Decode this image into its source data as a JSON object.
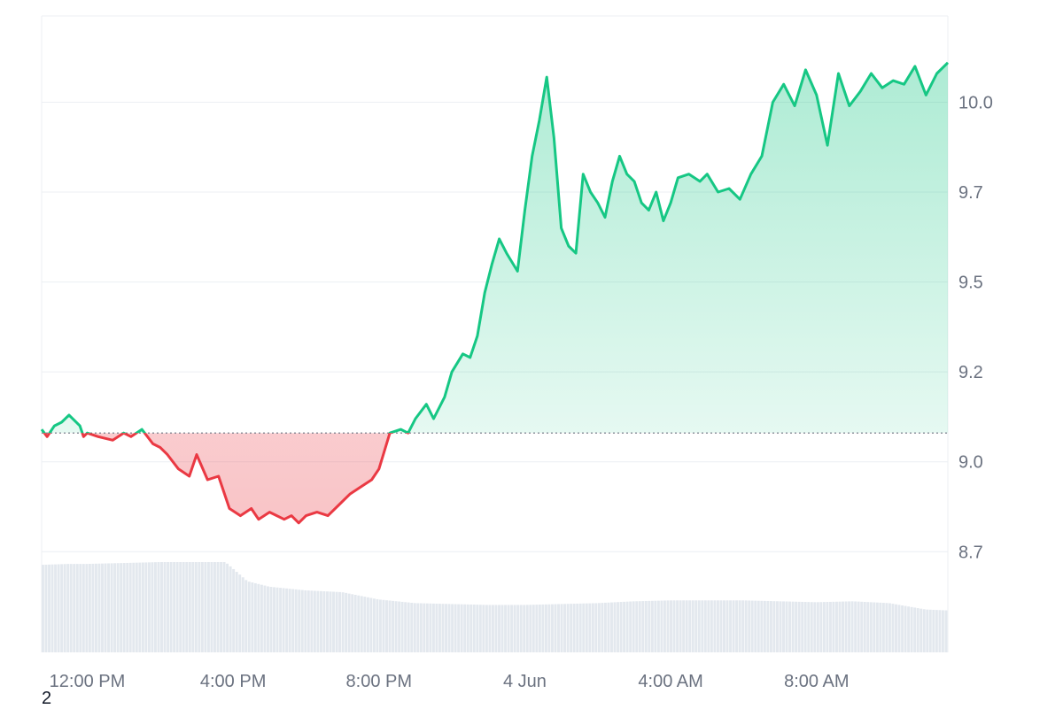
{
  "footnote": "2",
  "colors": {
    "up": "#16c784",
    "down": "#ea3943",
    "grid": "#eceff3",
    "volume": "#e3e8ee",
    "baseline": "#6b7280",
    "tick": "#6b7280"
  },
  "chart_data": {
    "type": "area",
    "title": "",
    "xlabel": "",
    "ylabel": "",
    "baseline_value": 9.08,
    "ylim": [
      8.47,
      10.24
    ],
    "y_ticks": [
      {
        "value": 8.75,
        "label": "8.7"
      },
      {
        "value": 9.0,
        "label": "9.0"
      },
      {
        "value": 9.25,
        "label": "9.2"
      },
      {
        "value": 9.5,
        "label": "9.5"
      },
      {
        "value": 9.75,
        "label": "9.7"
      },
      {
        "value": 10.0,
        "label": "10.0"
      }
    ],
    "x_range_hours": [
      10.75,
      35.6
    ],
    "x_ticks": [
      {
        "hour": 12,
        "label": "12:00 PM"
      },
      {
        "hour": 16,
        "label": "4:00 PM"
      },
      {
        "hour": 20,
        "label": "8:00 PM"
      },
      {
        "hour": 24,
        "label": "4 Jun"
      },
      {
        "hour": 28,
        "label": "4:00 AM"
      },
      {
        "hour": 32,
        "label": "8:00 AM"
      }
    ],
    "price_series": {
      "x_hours": [
        10.75,
        10.9,
        11.1,
        11.3,
        11.5,
        11.8,
        11.9,
        12.0,
        12.3,
        12.7,
        13.0,
        13.2,
        13.5,
        13.8,
        14.0,
        14.2,
        14.5,
        14.8,
        15.0,
        15.3,
        15.6,
        15.9,
        16.2,
        16.5,
        16.7,
        17.0,
        17.2,
        17.4,
        17.6,
        17.8,
        18.0,
        18.3,
        18.6,
        18.9,
        19.2,
        19.5,
        19.8,
        20.0,
        20.3,
        20.6,
        20.8,
        21.0,
        21.3,
        21.5,
        21.8,
        22.0,
        22.3,
        22.5,
        22.7,
        22.9,
        23.1,
        23.3,
        23.5,
        23.8,
        24.0,
        24.2,
        24.4,
        24.6,
        24.8,
        25.0,
        25.2,
        25.4,
        25.6,
        25.8,
        26.0,
        26.2,
        26.4,
        26.6,
        26.8,
        27.0,
        27.2,
        27.4,
        27.6,
        27.8,
        28.0,
        28.2,
        28.5,
        28.8,
        29.0,
        29.3,
        29.6,
        29.9,
        30.2,
        30.5,
        30.8,
        31.1,
        31.4,
        31.7,
        32.0,
        32.3,
        32.6,
        32.9,
        33.2,
        33.5,
        33.8,
        34.1,
        34.4,
        34.7,
        35.0,
        35.3,
        35.6
      ],
      "values": [
        9.09,
        9.07,
        9.1,
        9.11,
        9.13,
        9.1,
        9.07,
        9.08,
        9.07,
        9.06,
        9.08,
        9.07,
        9.09,
        9.05,
        9.04,
        9.02,
        8.98,
        8.96,
        9.02,
        8.95,
        8.96,
        8.87,
        8.85,
        8.87,
        8.84,
        8.86,
        8.85,
        8.84,
        8.85,
        8.83,
        8.85,
        8.86,
        8.85,
        8.88,
        8.91,
        8.93,
        8.95,
        8.98,
        9.08,
        9.09,
        9.08,
        9.12,
        9.16,
        9.12,
        9.18,
        9.25,
        9.3,
        9.29,
        9.35,
        9.47,
        9.55,
        9.62,
        9.58,
        9.53,
        9.7,
        9.85,
        9.95,
        10.07,
        9.9,
        9.65,
        9.6,
        9.58,
        9.8,
        9.75,
        9.72,
        9.68,
        9.78,
        9.85,
        9.8,
        9.78,
        9.72,
        9.7,
        9.75,
        9.67,
        9.72,
        9.79,
        9.8,
        9.78,
        9.8,
        9.75,
        9.76,
        9.73,
        9.8,
        9.85,
        10.0,
        10.05,
        9.99,
        10.09,
        10.02,
        9.88,
        10.08,
        9.99,
        10.03,
        10.08,
        10.04,
        10.06,
        10.05,
        10.1,
        10.02,
        10.08,
        10.11
      ]
    },
    "volume_series": {
      "x_hours": [
        10.75,
        11.5,
        12.0,
        13.0,
        14.0,
        15.0,
        15.8,
        16.4,
        17.0,
        18.0,
        19.0,
        20.0,
        21.0,
        22.0,
        23.0,
        24.0,
        25.0,
        26.0,
        27.0,
        28.0,
        29.0,
        30.0,
        31.0,
        32.0,
        33.0,
        34.0,
        35.0,
        35.6
      ],
      "relative_height": [
        0.96,
        0.97,
        0.97,
        0.98,
        0.99,
        0.99,
        0.99,
        0.78,
        0.72,
        0.68,
        0.66,
        0.58,
        0.54,
        0.53,
        0.52,
        0.52,
        0.53,
        0.54,
        0.56,
        0.57,
        0.57,
        0.57,
        0.56,
        0.55,
        0.56,
        0.54,
        0.47,
        0.46
      ]
    }
  }
}
